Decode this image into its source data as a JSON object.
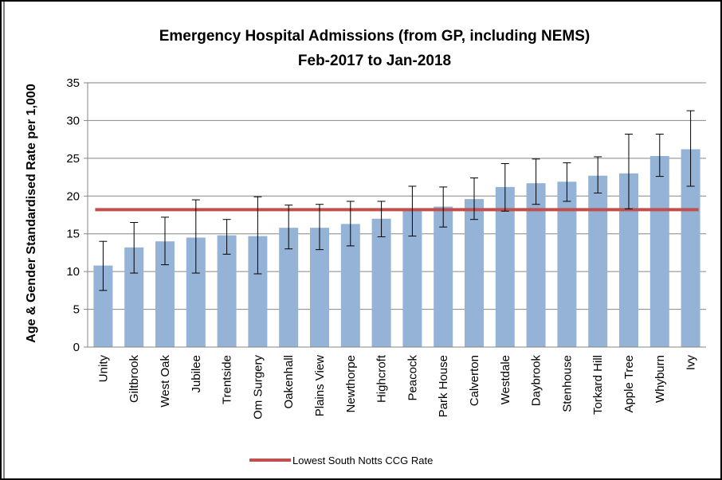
{
  "chart_data": {
    "type": "bar",
    "title": "Emergency Hospital Admissions (from GP, including NEMS)",
    "subtitle": "Feb-2017 to Jan-2018",
    "y_label": "Age & Gender Standardised  Rate per 1,000",
    "categories": [
      "Unity",
      "Giltbrook",
      "West Oak",
      "Jubilee",
      "Trentside",
      "Om Surgery",
      "Oakenhall",
      "Plains View",
      "Newthorpe",
      "Highcroft",
      "Peacock",
      "Park House",
      "Calverton",
      "Westdale",
      "Daybrook",
      "Stenhouse",
      "Torkard Hill",
      "Apple Tree",
      "Whyburn",
      "Ivy"
    ],
    "series": [
      {
        "color": "#95b3d7",
        "values": [
          10.8,
          13.2,
          14.0,
          14.5,
          14.8,
          14.7,
          15.8,
          15.8,
          16.3,
          17.0,
          18.1,
          18.6,
          19.6,
          21.2,
          21.7,
          21.9,
          22.7,
          23.0,
          25.3,
          26.2
        ],
        "upper": [
          14.0,
          16.5,
          17.2,
          19.5,
          16.9,
          19.9,
          18.8,
          18.9,
          19.3,
          19.3,
          21.3,
          21.2,
          22.4,
          24.3,
          24.9,
          24.4,
          25.2,
          28.2,
          28.2,
          31.3
        ],
        "lower": [
          7.5,
          9.8,
          10.9,
          9.8,
          12.3,
          9.7,
          13.0,
          12.9,
          13.4,
          14.6,
          14.7,
          15.9,
          16.9,
          18.0,
          18.9,
          19.3,
          20.4,
          18.3,
          22.6,
          21.3
        ]
      }
    ],
    "reference_line": {
      "name": "Lowest South Notts CCG Rate",
      "value": 18.2,
      "color": "#c0504d"
    },
    "ylim": [
      0,
      35
    ],
    "yticks": [
      0,
      5,
      10,
      15,
      20,
      25,
      30,
      35
    ],
    "grid": true
  }
}
